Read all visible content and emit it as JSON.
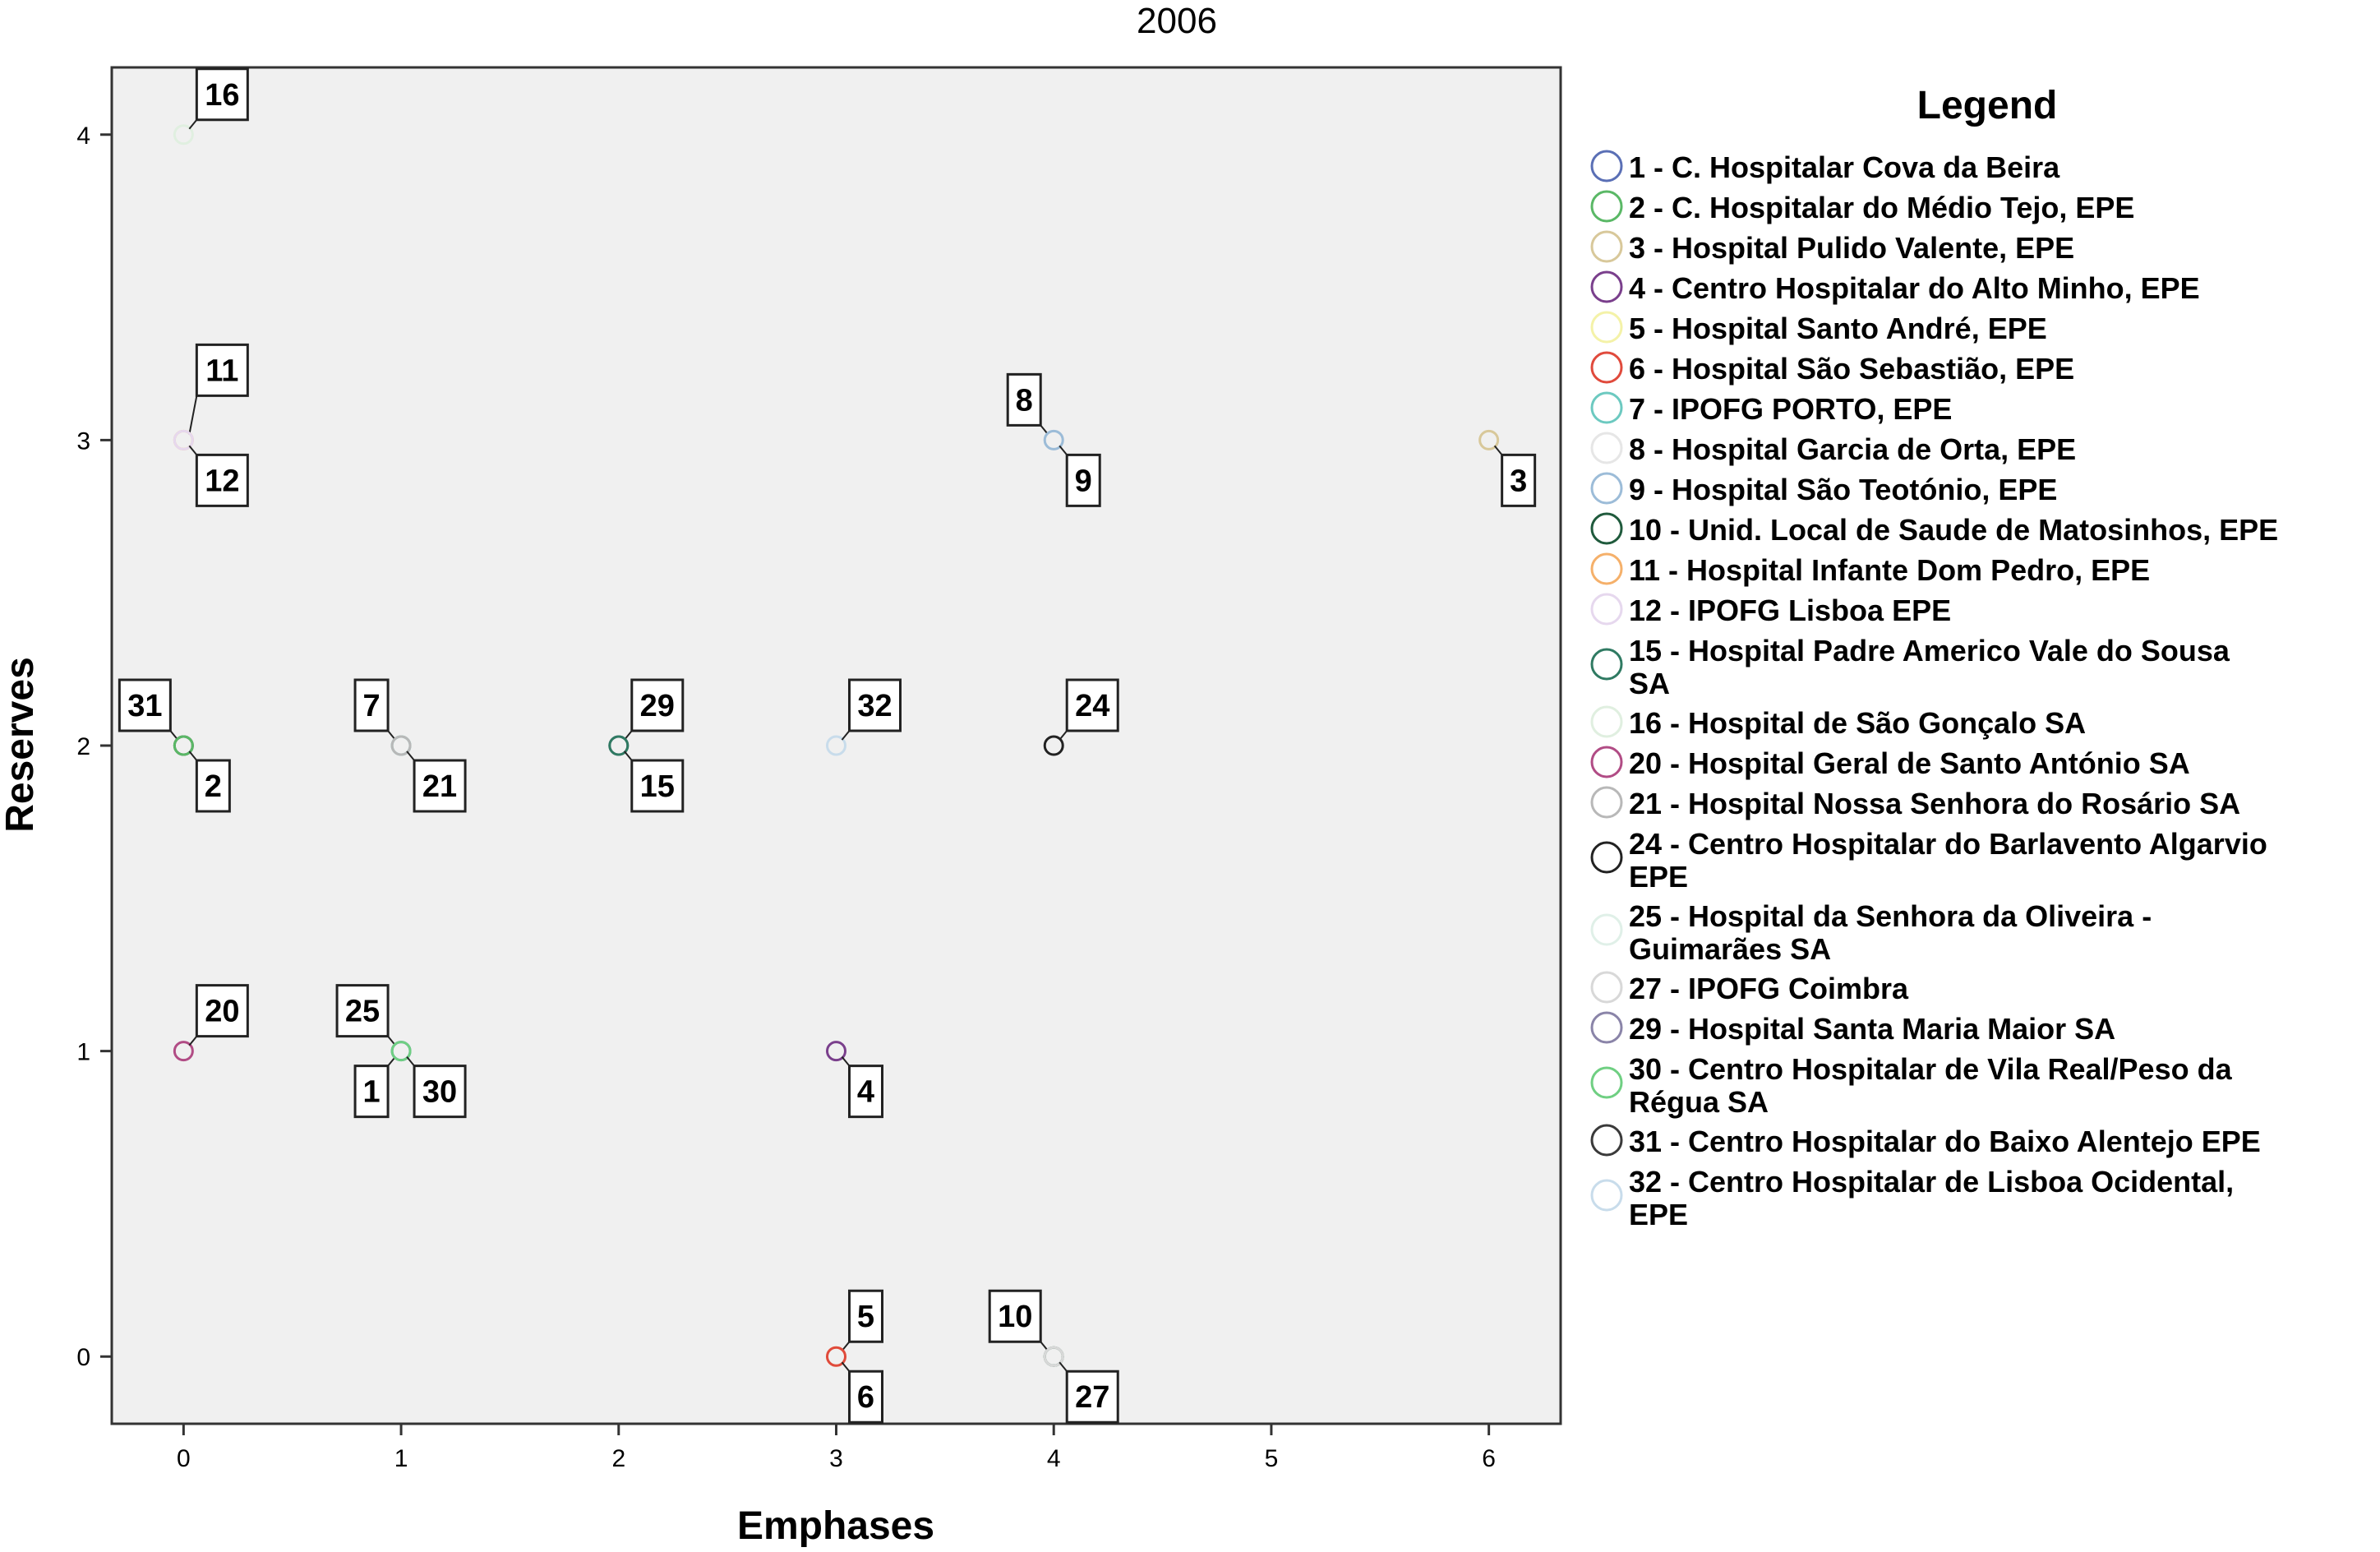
{
  "chart_data": {
    "type": "scatter",
    "title": "2006",
    "xlabel": "Emphases",
    "ylabel": "Reserves",
    "xlim": [
      -0.33,
      6.33
    ],
    "ylim": [
      -0.22,
      4.22
    ],
    "xticks": [
      0,
      1,
      2,
      3,
      4,
      5,
      6
    ],
    "yticks": [
      0,
      1,
      2,
      3,
      4
    ],
    "grid": false,
    "legend_title": "Legend",
    "legend_position": "right",
    "points": [
      {
        "label": "16",
        "x": 0,
        "y": 4,
        "color": "#e0efe0",
        "side": "upper-right",
        "stack": 0
      },
      {
        "label": "11",
        "x": 0,
        "y": 3,
        "color": "#f5b06a",
        "side": "upper-right",
        "stack": 1
      },
      {
        "label": "12",
        "x": 0,
        "y": 3,
        "color": "#e6d8ee",
        "side": "lower-right",
        "stack": 0
      },
      {
        "label": "31",
        "x": 0,
        "y": 2,
        "color": "#3a3a3a",
        "side": "upper-left",
        "stack": 0
      },
      {
        "label": "2",
        "x": 0,
        "y": 2,
        "color": "#5ab866",
        "side": "lower-right",
        "stack": 0
      },
      {
        "label": "20",
        "x": 0,
        "y": 1,
        "color": "#b14c85",
        "side": "upper-right",
        "stack": 0
      },
      {
        "label": "7",
        "x": 1,
        "y": 2,
        "color": "#6cc9c0",
        "side": "upper-left",
        "stack": 0
      },
      {
        "label": "21",
        "x": 1,
        "y": 2,
        "color": "#b8b8b8",
        "side": "lower-right",
        "stack": 0
      },
      {
        "label": "25",
        "x": 1,
        "y": 1,
        "color": "#e0f0e8",
        "side": "upper-left",
        "stack": 0
      },
      {
        "label": "1",
        "x": 1,
        "y": 1,
        "color": "#5a6fb5",
        "side": "lower-left",
        "stack": 0
      },
      {
        "label": "30",
        "x": 1,
        "y": 1,
        "color": "#6fcf82",
        "side": "lower-right",
        "stack": 0
      },
      {
        "label": "29",
        "x": 2,
        "y": 2,
        "color": "#8a84a8",
        "side": "upper-right",
        "stack": 0
      },
      {
        "label": "15",
        "x": 2,
        "y": 2,
        "color": "#2f7a62",
        "side": "lower-right",
        "stack": 0
      },
      {
        "label": "32",
        "x": 3,
        "y": 2,
        "color": "#c8dceb",
        "side": "upper-right",
        "stack": 0
      },
      {
        "label": "4",
        "x": 3,
        "y": 1,
        "color": "#7a3f8c",
        "side": "lower-right",
        "stack": 0
      },
      {
        "label": "5",
        "x": 3,
        "y": 0,
        "color": "#f4f2a8",
        "side": "upper-right",
        "stack": 0
      },
      {
        "label": "6",
        "x": 3,
        "y": 0,
        "color": "#e04a3c",
        "side": "lower-right",
        "stack": 0
      },
      {
        "label": "8",
        "x": 4,
        "y": 3,
        "color": "#e6e6e6",
        "side": "upper-left",
        "stack": 0
      },
      {
        "label": "9",
        "x": 4,
        "y": 3,
        "color": "#9cbcd8",
        "side": "lower-right",
        "stack": 0
      },
      {
        "label": "24",
        "x": 4,
        "y": 2,
        "color": "#222222",
        "side": "upper-right",
        "stack": 0
      },
      {
        "label": "10",
        "x": 4,
        "y": 0,
        "color": "#1f5a3c",
        "side": "upper-left",
        "stack": 0
      },
      {
        "label": "27",
        "x": 4,
        "y": 0,
        "color": "#d8d8d8",
        "side": "lower-right",
        "stack": 0
      },
      {
        "label": "3",
        "x": 6,
        "y": 3,
        "color": "#d8c89a",
        "side": "lower-right",
        "stack": 0
      }
    ],
    "legend": [
      {
        "lines": [
          "1 - C. Hospitalar Cova da Beira"
        ],
        "color": "#5a6fb5"
      },
      {
        "lines": [
          "2 - C. Hospitalar do Médio Tejo, EPE"
        ],
        "color": "#5ab866"
      },
      {
        "lines": [
          "3 - Hospital Pulido Valente, EPE"
        ],
        "color": "#d8c89a"
      },
      {
        "lines": [
          "4 - Centro Hospitalar do Alto Minho, EPE"
        ],
        "color": "#7a3f8c"
      },
      {
        "lines": [
          "5 - Hospital Santo André, EPE"
        ],
        "color": "#f4f2a8"
      },
      {
        "lines": [
          "6 - Hospital São Sebastião, EPE"
        ],
        "color": "#e04a3c"
      },
      {
        "lines": [
          "7 - IPOFG PORTO, EPE"
        ],
        "color": "#6cc9c0"
      },
      {
        "lines": [
          "8 - Hospital Garcia  de Orta, EPE"
        ],
        "color": "#e6e6e6"
      },
      {
        "lines": [
          "9 - Hospital São Teotónio, EPE"
        ],
        "color": "#9cbcd8"
      },
      {
        "lines": [
          "10 - Unid. Local de Saude de Matosinhos, EPE"
        ],
        "color": "#1f5a3c"
      },
      {
        "lines": [
          "11 - Hospital Infante Dom Pedro, EPE"
        ],
        "color": "#f5b06a"
      },
      {
        "lines": [
          "12 - IPOFG Lisboa EPE"
        ],
        "color": "#e6d8ee"
      },
      {
        "lines": [
          "15 - Hospital Padre Americo  Vale do Sousa",
          "SA"
        ],
        "color": "#2f7a62"
      },
      {
        "lines": [
          "16 - Hospital de São Gonçalo SA"
        ],
        "color": "#e0efe0"
      },
      {
        "lines": [
          "20 - Hospital Geral de Santo António SA"
        ],
        "color": "#b14c85"
      },
      {
        "lines": [
          "21 - Hospital Nossa Senhora do Rosário SA"
        ],
        "color": "#b8b8b8"
      },
      {
        "lines": [
          "24 - Centro Hospitalar do Barlavento Algarvio",
          "EPE"
        ],
        "color": "#222222"
      },
      {
        "lines": [
          "25 - Hospital da Senhora da Oliveira -",
          "Guimarães SA"
        ],
        "color": "#e0f0e8"
      },
      {
        "lines": [
          "27 - IPOFG Coimbra"
        ],
        "color": "#d8d8d8"
      },
      {
        "lines": [
          "29 - Hospital Santa Maria Maior SA"
        ],
        "color": "#8a84a8"
      },
      {
        "lines": [
          "30 - Centro Hospitalar de Vila Real/Peso da",
          "Régua SA"
        ],
        "color": "#6fcf82"
      },
      {
        "lines": [
          "31 - Centro Hospitalar do Baixo Alentejo EPE"
        ],
        "color": "#3a3a3a"
      },
      {
        "lines": [
          "32 - Centro Hospitalar de Lisboa Ocidental,",
          "EPE"
        ],
        "color": "#c8dceb"
      }
    ]
  }
}
